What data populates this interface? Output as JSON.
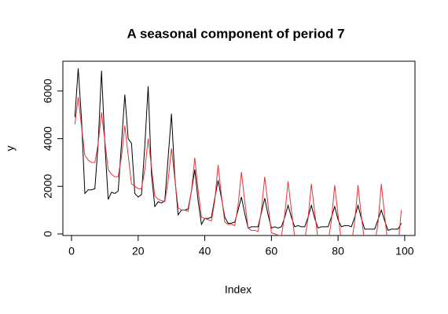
{
  "chart_data": {
    "type": "line",
    "title": "A seasonal component of period 7",
    "xlabel": "Index",
    "ylabel": "y",
    "x": [
      1,
      2,
      3,
      4,
      5,
      6,
      7,
      8,
      9,
      10,
      11,
      12,
      13,
      14,
      15,
      16,
      17,
      18,
      19,
      20,
      21,
      22,
      23,
      24,
      25,
      26,
      27,
      28,
      29,
      30,
      31,
      32,
      33,
      34,
      35,
      36,
      37,
      38,
      39,
      40,
      41,
      42,
      43,
      44,
      45,
      46,
      47,
      48,
      49,
      50,
      51,
      52,
      53,
      54,
      55,
      56,
      57,
      58,
      59,
      60,
      61,
      62,
      63,
      64,
      65,
      66,
      67,
      68,
      69,
      70,
      71,
      72,
      73,
      74,
      75,
      76,
      77,
      78,
      79,
      80,
      81,
      82,
      83,
      84,
      85,
      86,
      87,
      88,
      89,
      90,
      91,
      92,
      93,
      94,
      95,
      96,
      97,
      98,
      99
    ],
    "series": [
      {
        "color": "#000000",
        "values": [
          4900,
          6950,
          4800,
          1700,
          1850,
          1850,
          1900,
          3800,
          6850,
          3800,
          1450,
          1750,
          1700,
          1800,
          3800,
          5850,
          4000,
          3800,
          1700,
          1550,
          1650,
          3700,
          6200,
          2500,
          1150,
          1350,
          1300,
          1400,
          3200,
          5050,
          2400,
          800,
          1000,
          1000,
          1050,
          1800,
          2700,
          1400,
          400,
          650,
          650,
          700,
          1500,
          2250,
          1500,
          700,
          450,
          450,
          500,
          1000,
          1550,
          850,
          250,
          300,
          300,
          300,
          900,
          1500,
          800,
          250,
          300,
          250,
          300,
          700,
          1200,
          700,
          300,
          350,
          300,
          300,
          700,
          1200,
          650,
          250,
          300,
          300,
          300,
          700,
          1150,
          600,
          300,
          350,
          350,
          300,
          700,
          1200,
          650,
          200,
          200,
          200,
          200,
          600,
          1000,
          550,
          150,
          200,
          200,
          200,
          450
        ]
      },
      {
        "color": "#e8303a",
        "values": [
          4600,
          5750,
          4500,
          3300,
          3100,
          3000,
          3000,
          3800,
          5100,
          3900,
          2700,
          2500,
          2400,
          2400,
          3250,
          4550,
          3300,
          2100,
          2000,
          1900,
          1900,
          2700,
          4000,
          2800,
          1600,
          1450,
          1400,
          1350,
          2250,
          3600,
          2300,
          1100,
          1000,
          1000,
          950,
          1800,
          3200,
          1850,
          700,
          650,
          600,
          550,
          1400,
          2900,
          1600,
          500,
          400,
          400,
          350,
          1200,
          2600,
          1350,
          250,
          150,
          150,
          100,
          1000,
          2400,
          1200,
          50,
          0,
          -50,
          -100,
          800,
          2200,
          1000,
          -150,
          -200,
          -200,
          -250,
          650,
          2100,
          900,
          -250,
          -300,
          -300,
          -350,
          550,
          2050,
          800,
          -300,
          -350,
          -400,
          -400,
          500,
          2050,
          750,
          -400,
          -400,
          -450,
          -450,
          450,
          2100,
          750,
          -450,
          -500,
          -500,
          -550,
          1000
        ]
      }
    ],
    "xlim": [
      -2.6,
      103.1
    ],
    "ylim": [
      -66,
      7250
    ],
    "xticks": [
      0,
      20,
      40,
      60,
      80,
      100
    ],
    "yticks": [
      0,
      2000,
      4000,
      6000
    ]
  }
}
